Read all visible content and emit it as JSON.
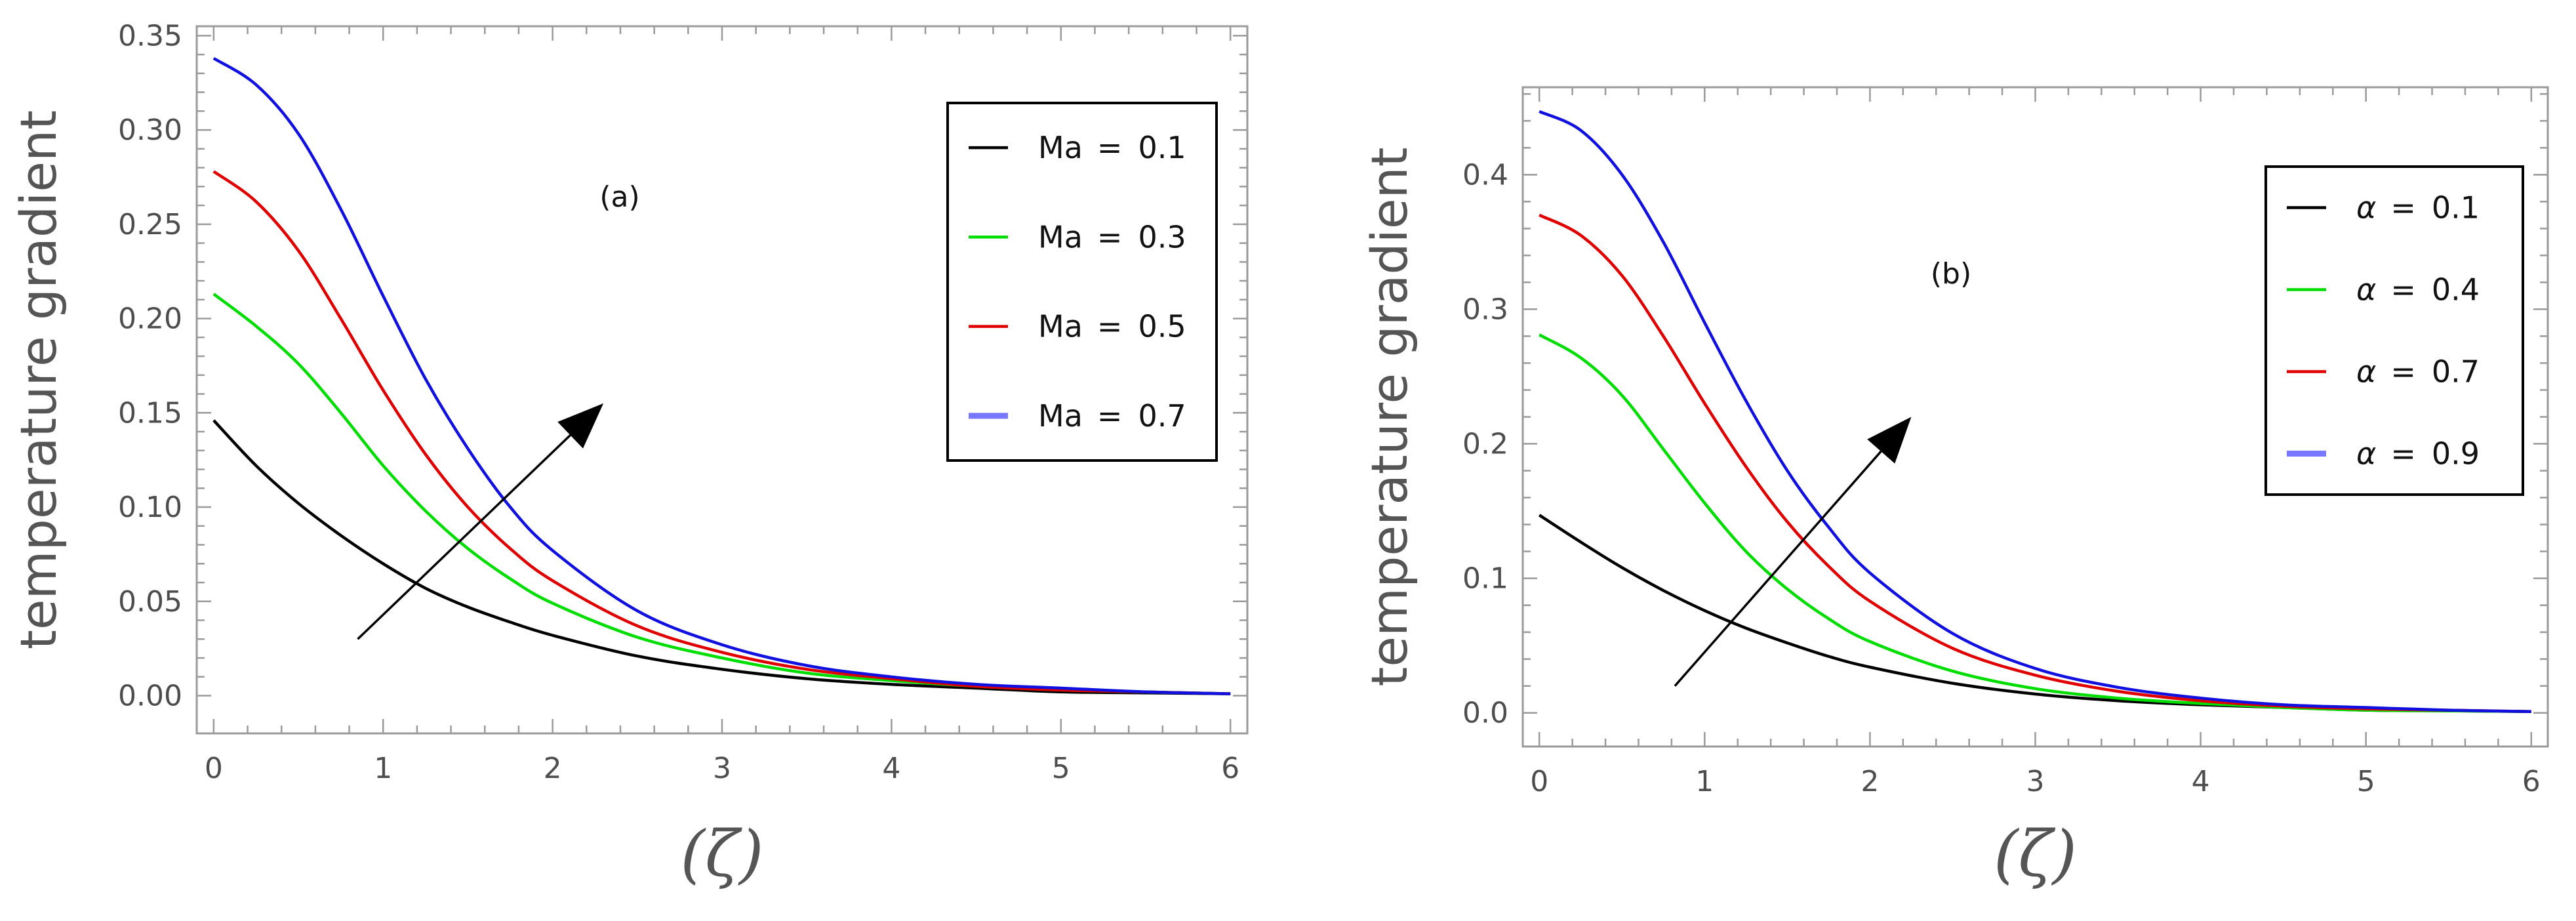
{
  "chart_data": [
    {
      "type": "line",
      "annotation": "(a)",
      "ylabel": "temperature gradient",
      "xlabel": "(ζ)",
      "xlim": [
        -0.1,
        6.1
      ],
      "ylim": [
        -0.02,
        0.355
      ],
      "xticks": [
        "0",
        "1",
        "2",
        "3",
        "4",
        "5",
        "6"
      ],
      "yticks": [
        "0.00",
        "0.05",
        "0.10",
        "0.15",
        "0.20",
        "0.25",
        "0.30",
        "0.35"
      ],
      "ytick_values": [
        0,
        0.05,
        0.1,
        0.15,
        0.2,
        0.25,
        0.3,
        0.35
      ],
      "arrow": {
        "from": [
          0.85,
          0.03
        ],
        "to": [
          2.3,
          0.155
        ]
      },
      "legend": [
        {
          "name": "Ma",
          "sep": "=",
          "value": "0.1"
        },
        {
          "name": "Ma",
          "sep": "=",
          "value": "0.3"
        },
        {
          "name": "Ma",
          "sep": "=",
          "value": "0.5"
        },
        {
          "name": "Ma",
          "sep": "=",
          "value": "0.7"
        }
      ],
      "x": [
        0,
        0.25,
        0.5,
        0.75,
        1,
        1.25,
        1.5,
        1.75,
        2,
        2.5,
        3,
        3.5,
        4,
        4.5,
        5,
        5.5,
        6
      ],
      "series": [
        {
          "name": "Ma = 0.1",
          "color": "#000000",
          "values": [
            0.146,
            0.122,
            0.102,
            0.085,
            0.07,
            0.057,
            0.047,
            0.039,
            0.032,
            0.021,
            0.014,
            0.009,
            0.006,
            0.004,
            0.002,
            0.0015,
            0.001
          ]
        },
        {
          "name": "Ma = 0.3",
          "color": "#00dd00",
          "values": [
            0.213,
            0.196,
            0.176,
            0.15,
            0.122,
            0.098,
            0.078,
            0.062,
            0.049,
            0.031,
            0.02,
            0.012,
            0.008,
            0.005,
            0.003,
            0.002,
            0.001
          ]
        },
        {
          "name": "Ma = 0.5",
          "color": "#e00000",
          "values": [
            0.278,
            0.262,
            0.236,
            0.2,
            0.162,
            0.128,
            0.1,
            0.078,
            0.061,
            0.037,
            0.023,
            0.014,
            0.009,
            0.005,
            0.003,
            0.002,
            0.001
          ]
        },
        {
          "name": "Ma = 0.7",
          "color": "#1010e0",
          "values": [
            0.338,
            0.324,
            0.298,
            0.258,
            0.212,
            0.168,
            0.131,
            0.1,
            0.077,
            0.045,
            0.027,
            0.016,
            0.01,
            0.006,
            0.004,
            0.002,
            0.001
          ]
        }
      ]
    },
    {
      "type": "line",
      "annotation": "(b)",
      "ylabel": "temperature gradient",
      "xlabel": "(ζ)",
      "xlim": [
        -0.1,
        6.1
      ],
      "ylim": [
        -0.025,
        0.465
      ],
      "xticks": [
        "0",
        "1",
        "2",
        "3",
        "4",
        "5",
        "6"
      ],
      "yticks": [
        "0.0",
        "0.1",
        "0.2",
        "0.3",
        "0.4"
      ],
      "ytick_values": [
        0,
        0.1,
        0.2,
        0.3,
        0.4
      ],
      "arrow": {
        "from": [
          0.82,
          0.02
        ],
        "to": [
          2.25,
          0.22
        ]
      },
      "legend": [
        {
          "name": "α",
          "sep": "=",
          "value": "0.1"
        },
        {
          "name": "α",
          "sep": "=",
          "value": "0.4"
        },
        {
          "name": "α",
          "sep": "=",
          "value": "0.7"
        },
        {
          "name": "α",
          "sep": "=",
          "value": "0.9"
        }
      ],
      "x": [
        0,
        0.25,
        0.5,
        0.75,
        1,
        1.25,
        1.5,
        1.75,
        2,
        2.5,
        3,
        3.5,
        4,
        4.5,
        5,
        5.5,
        6
      ],
      "series": [
        {
          "name": "α = 0.1",
          "color": "#000000",
          "values": [
            0.147,
            0.127,
            0.108,
            0.091,
            0.076,
            0.063,
            0.052,
            0.042,
            0.034,
            0.022,
            0.014,
            0.009,
            0.006,
            0.004,
            0.002,
            0.0015,
            0.001
          ]
        },
        {
          "name": "α = 0.4",
          "color": "#00dd00",
          "values": [
            0.281,
            0.264,
            0.236,
            0.196,
            0.156,
            0.12,
            0.092,
            0.07,
            0.053,
            0.031,
            0.018,
            0.011,
            0.007,
            0.004,
            0.002,
            0.0015,
            0.001
          ]
        },
        {
          "name": "α = 0.7",
          "color": "#e00000",
          "values": [
            0.37,
            0.355,
            0.325,
            0.28,
            0.23,
            0.183,
            0.142,
            0.109,
            0.083,
            0.048,
            0.028,
            0.016,
            0.009,
            0.005,
            0.003,
            0.002,
            0.001
          ]
        },
        {
          "name": "α = 0.9",
          "color": "#1010e0",
          "values": [
            0.447,
            0.433,
            0.4,
            0.35,
            0.29,
            0.232,
            0.18,
            0.138,
            0.104,
            0.059,
            0.033,
            0.019,
            0.011,
            0.006,
            0.004,
            0.002,
            0.001
          ]
        }
      ]
    }
  ]
}
